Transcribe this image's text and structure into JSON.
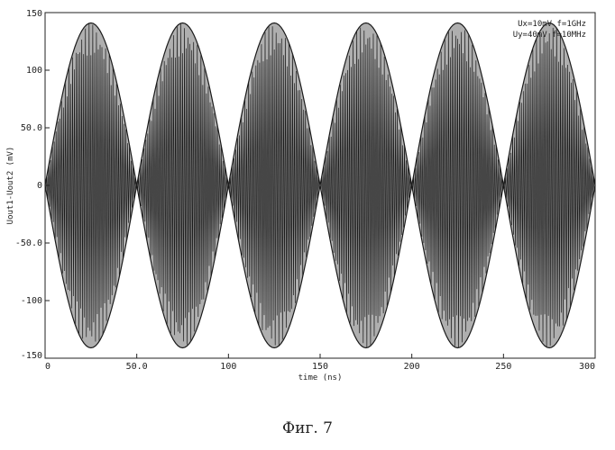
{
  "figure_caption": "Фиг. 7",
  "chart_data": {
    "type": "line",
    "title": "",
    "xlabel": "time (ns)",
    "ylabel": "Uout1-Uout2 (mV)",
    "xlim": [
      0,
      300
    ],
    "ylim": [
      -150,
      150
    ],
    "x_ticks": [
      0,
      50,
      100,
      150,
      200,
      250,
      300
    ],
    "x_tick_labels": [
      "0",
      "50.0",
      "100",
      "150",
      "200",
      "250",
      "300"
    ],
    "y_ticks": [
      -150,
      -100,
      -50,
      0,
      50,
      100,
      150
    ],
    "y_tick_labels": [
      "-150",
      "-100",
      "-50.0",
      "0",
      "50.0",
      "100",
      "150"
    ],
    "grid": false,
    "legend_position": "top-right",
    "annotations": [
      "Ux=10mV f=1GHz",
      "Uy=40mV f=10MHz"
    ],
    "carrier_frequency_ghz": 1,
    "envelope_frequency_mhz": 10,
    "envelope_peak_mv": 141,
    "lobe_count": 6,
    "lobe_peak_times_ns": [
      25,
      75,
      125,
      175,
      225,
      275
    ],
    "series": [
      {
        "color": "#1a1a1a"
      }
    ]
  }
}
